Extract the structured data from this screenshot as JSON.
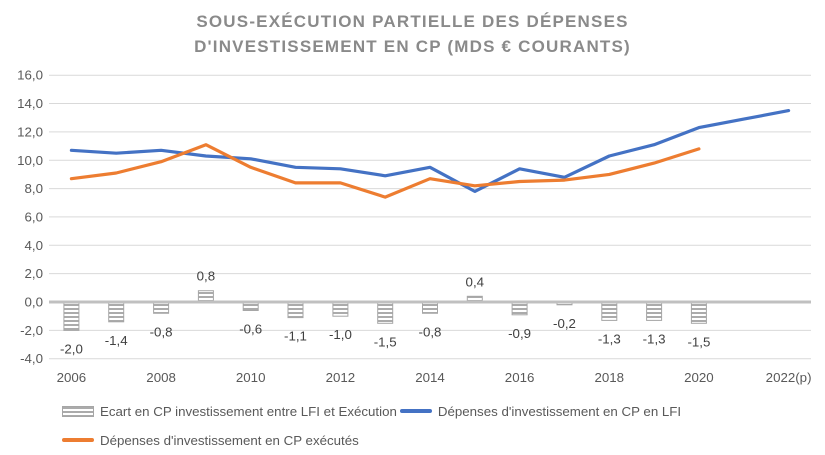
{
  "title": {
    "line1": "SOUS-EXÉCUTION PARTIELLE DES DÉPENSES",
    "line2": "D'INVESTISSEMENT EN CP (MDS € COURANTS)"
  },
  "colors": {
    "lfi_line": "#4472C4",
    "exec_line": "#ED7D31",
    "bar_fill": "#ABABAB",
    "bar_border": "#A6A6A6",
    "grid": "#D9D9D9",
    "zero_axis": "#C0C0C0",
    "axis_text": "#595959",
    "data_label_text": "#404040",
    "title_text": "#8A8A8A",
    "legend_text": "#595959",
    "background": "#FFFFFF"
  },
  "chart_data": {
    "type": "combo bar+line",
    "x": [
      2006,
      2007,
      2008,
      2009,
      2010,
      2011,
      2012,
      2013,
      2014,
      2015,
      2016,
      2017,
      2018,
      2019,
      2020,
      2021,
      2022
    ],
    "x_tick_labels": [
      "2006",
      "2008",
      "2010",
      "2012",
      "2014",
      "2016",
      "2018",
      "2020",
      "2022(p)"
    ],
    "y_ticks": {
      "values": [
        16,
        14,
        12,
        10,
        8,
        6,
        4,
        2,
        0,
        -2,
        -4
      ],
      "labels": [
        "16,0",
        "14,0",
        "12,0",
        "10,0",
        "8,0",
        "6,0",
        "4,0",
        "2,0",
        "0,0",
        "-2,0",
        "-4,0"
      ]
    },
    "ylim": [
      -4,
      16
    ],
    "grid": true,
    "legend_position": "bottom-left",
    "series": [
      {
        "name": "Ecart en CP investissement entre LFI et Exécution",
        "type": "bar",
        "values": [
          -2.0,
          -1.4,
          -0.8,
          0.8,
          -0.6,
          -1.1,
          -1.0,
          -1.5,
          -0.8,
          0.4,
          -0.9,
          -0.2,
          -1.3,
          -1.3,
          -1.5,
          null,
          null
        ],
        "labels": [
          "-2,0",
          "-1,4",
          "-0,8",
          "0,8",
          "-0,6",
          "-1,1",
          "-1,0",
          "-1,5",
          "-0,8",
          "0,4",
          "-0,9",
          "-0,2",
          "-1,3",
          "-1,3",
          "-1,5",
          null,
          null
        ]
      },
      {
        "name": "Dépenses d'investissement en CP en LFI",
        "type": "line",
        "values": [
          10.7,
          10.5,
          10.7,
          10.3,
          10.1,
          9.5,
          9.4,
          8.9,
          9.5,
          7.8,
          9.4,
          8.8,
          10.3,
          11.1,
          12.3,
          12.9,
          13.5
        ]
      },
      {
        "name": "Dépenses d'investissement en CP exécutés",
        "type": "line",
        "values": [
          8.7,
          9.1,
          9.9,
          11.1,
          9.5,
          8.4,
          8.4,
          7.4,
          8.7,
          8.2,
          8.5,
          8.6,
          9.0,
          9.8,
          10.8,
          null,
          null
        ]
      }
    ]
  }
}
